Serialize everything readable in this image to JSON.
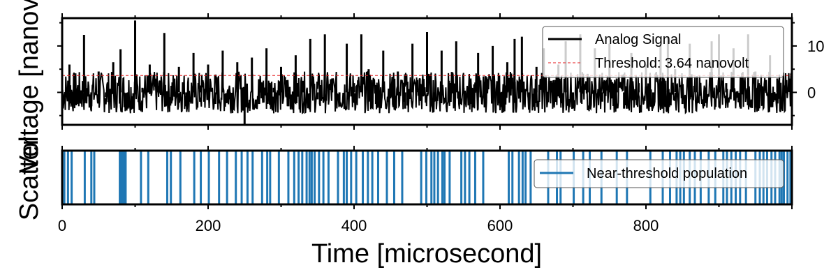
{
  "chart_data": [
    {
      "type": "line",
      "panel": "signal",
      "title": "",
      "ylabel": "Voltage [nanovolt]",
      "ylim": [
        -7,
        16
      ],
      "xlim": [
        0,
        1000
      ],
      "y_ticks_right": [
        0,
        10
      ],
      "grid": false,
      "legend_position": "top-right",
      "series": [
        {
          "name": "Analog Signal",
          "color": "#000000",
          "x": [
            0,
            10,
            20,
            30,
            40,
            50,
            60,
            70,
            80,
            90,
            100,
            110,
            120,
            130,
            140,
            150,
            160,
            170,
            180,
            190,
            200,
            210,
            220,
            230,
            240,
            250,
            260,
            270,
            280,
            290,
            300,
            310,
            320,
            330,
            340,
            350,
            360,
            370,
            380,
            390,
            400,
            410,
            420,
            430,
            440,
            450,
            460,
            470,
            480,
            490,
            500,
            510,
            520,
            530,
            540,
            550,
            560,
            570,
            580,
            590,
            600,
            610,
            620,
            630,
            640,
            650,
            660,
            670,
            680,
            690,
            700,
            710,
            720,
            730,
            740,
            750,
            760,
            770,
            780,
            790,
            800,
            810,
            820,
            830,
            840,
            850,
            860,
            870,
            880,
            890,
            900,
            910,
            920,
            930,
            940,
            950,
            960,
            970,
            980,
            990,
            1000
          ],
          "y": [
            0.5,
            6.0,
            -2.5,
            12.4,
            -3.0,
            4.5,
            -1.0,
            6.5,
            9.3,
            -3.5,
            15.5,
            1.0,
            6.0,
            2.0,
            12.8,
            -2.0,
            5.5,
            -3.0,
            8.5,
            1.5,
            6.0,
            -2.5,
            9.0,
            -1.5,
            6.5,
            -7.0,
            7.5,
            -2.5,
            9.5,
            1.0,
            5.5,
            -3.0,
            8.0,
            2.5,
            11.5,
            -1.5,
            12.5,
            3.0,
            -3.0,
            10.5,
            2.0,
            12.5,
            5.0,
            -2.5,
            9.0,
            1.5,
            4.5,
            -3.5,
            10.5,
            3.0,
            13.0,
            -2.0,
            9.0,
            2.5,
            11.0,
            1.0,
            -2.5,
            8.5,
            3.5,
            10.0,
            -3.0,
            6.5,
            11.5,
            12.0,
            -2.5,
            5.5,
            9.5,
            2.5,
            6.0,
            11.0,
            -3.0,
            12.5,
            4.0,
            9.5,
            -2.0,
            10.5,
            3.0,
            -3.5,
            8.5,
            2.0,
            6.0,
            -3.0,
            10.0,
            12.0,
            5.0,
            -2.5,
            10.5,
            3.5,
            -3.0,
            11.0,
            12.5,
            2.0,
            9.5,
            -3.5,
            12.5,
            4.5,
            -2.0,
            8.0,
            3.0,
            1.5,
            0.0
          ]
        },
        {
          "name": "Threshold: 3.64 nanovolt",
          "color": "#e41a1c",
          "dashed": true,
          "x": [
            0,
            1000
          ],
          "y": [
            3.64,
            3.64
          ]
        }
      ]
    },
    {
      "type": "event",
      "panel": "scatter",
      "ylabel": "Scatter",
      "xlabel": "Time [microsecond]",
      "xlim": [
        0,
        1000
      ],
      "x_ticks": [
        0,
        200,
        400,
        600,
        800
      ],
      "legend_position": "top-right",
      "series": [
        {
          "name": "Near-threshold population",
          "color": "#1f77b4",
          "x": [
            3,
            8,
            13,
            31,
            40,
            44,
            79,
            81,
            83,
            85,
            87,
            108,
            118,
            144,
            149,
            162,
            181,
            190,
            201,
            215,
            226,
            238,
            246,
            254,
            261,
            274,
            281,
            285,
            297,
            310,
            318,
            324,
            329,
            335,
            339,
            342,
            346,
            352,
            358,
            365,
            378,
            386,
            390,
            396,
            403,
            412,
            419,
            425,
            433,
            445,
            455,
            466,
            492,
            499,
            506,
            510,
            515,
            521,
            524,
            531,
            547,
            552,
            558,
            566,
            577,
            612,
            617,
            626,
            631,
            635,
            642,
            666,
            678,
            683,
            701,
            714,
            723,
            739,
            760,
            774,
            806,
            823,
            833,
            842,
            847,
            852,
            860,
            867,
            875,
            886,
            895,
            906,
            911,
            917,
            923,
            929,
            937,
            950,
            956,
            961,
            966,
            972,
            977,
            983,
            986,
            989,
            994,
            998
          ]
        }
      ]
    }
  ]
}
